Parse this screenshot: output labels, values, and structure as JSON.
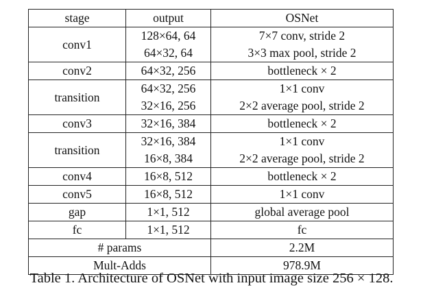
{
  "table": {
    "headers": {
      "stage": "stage",
      "output": "output",
      "osnet": "OSNet"
    },
    "rows": [
      {
        "stage": "conv1",
        "output": [
          "128×64, 64",
          "64×32, 64"
        ],
        "osnet": [
          "7×7 conv, stride 2",
          "3×3 max pool, stride 2"
        ]
      },
      {
        "stage": "conv2",
        "output": [
          "64×32, 256"
        ],
        "osnet": [
          "bottleneck × 2"
        ]
      },
      {
        "stage": "transition",
        "output": [
          "64×32, 256",
          "32×16, 256"
        ],
        "osnet": [
          "1×1 conv",
          "2×2 average pool, stride 2"
        ]
      },
      {
        "stage": "conv3",
        "output": [
          "32×16, 384"
        ],
        "osnet": [
          "bottleneck × 2"
        ]
      },
      {
        "stage": "transition",
        "output": [
          "32×16, 384",
          "16×8, 384"
        ],
        "osnet": [
          "1×1 conv",
          "2×2 average pool, stride 2"
        ]
      },
      {
        "stage": "conv4",
        "output": [
          "16×8, 512"
        ],
        "osnet": [
          "bottleneck × 2"
        ]
      },
      {
        "stage": "conv5",
        "output": [
          "16×8, 512"
        ],
        "osnet": [
          "1×1 conv"
        ]
      },
      {
        "stage": "gap",
        "output": [
          "1×1, 512"
        ],
        "osnet": [
          "global average pool"
        ]
      },
      {
        "stage": "fc",
        "output": [
          "1×1, 512"
        ],
        "osnet": [
          "fc"
        ]
      }
    ],
    "summary": [
      {
        "label": "# params",
        "value": "2.2M"
      },
      {
        "label": "Mult-Adds",
        "value": "978.9M"
      }
    ]
  },
  "caption": "Table 1. Architecture of OSNet with input image size 256 × 128."
}
